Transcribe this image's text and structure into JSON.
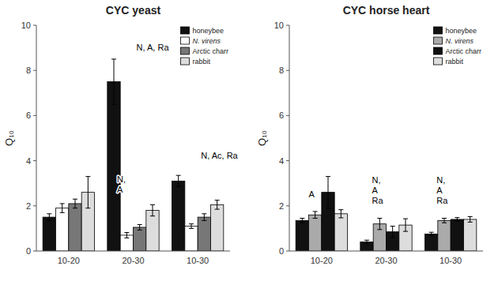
{
  "chart_data": [
    {
      "type": "bar",
      "title": "CYC yeast",
      "ylabel": "Q₁₀",
      "categories": [
        "10-20",
        "20-30",
        "10-30"
      ],
      "series": [
        {
          "name": "honeybee",
          "color": "#111111",
          "values": [
            1.5,
            7.5,
            3.1
          ],
          "errors": [
            0.15,
            1.0,
            0.25
          ]
        },
        {
          "name": "N. virens",
          "color": "#ffffff",
          "values": [
            1.9,
            0.7,
            1.1
          ],
          "errors": [
            0.2,
            0.12,
            0.1
          ]
        },
        {
          "name": "Arctic charr",
          "color": "#777777",
          "values": [
            2.1,
            1.05,
            1.5
          ],
          "errors": [
            0.2,
            0.12,
            0.15
          ]
        },
        {
          "name": "rabbit",
          "color": "#dddddd",
          "values": [
            2.6,
            1.8,
            2.05
          ],
          "errors": [
            0.7,
            0.25,
            0.2
          ]
        }
      ],
      "ylim": [
        0,
        10
      ],
      "yticks": [
        0,
        2,
        4,
        6,
        8,
        10
      ],
      "legend": "upper right",
      "annotations": [
        {
          "text": "N, A, Ra",
          "x": 1.05,
          "y": 8.8
        },
        {
          "text": "N,\nA",
          "x": 0.75,
          "y": 2.5
        },
        {
          "text": "N, Ac, Ra",
          "x": 2.05,
          "y": 4.0
        }
      ]
    },
    {
      "type": "bar",
      "title": "CYC horse heart",
      "ylabel": "Q₁₀",
      "categories": [
        "10-20",
        "20-30",
        "10-30"
      ],
      "series": [
        {
          "name": "honeybee",
          "color": "#111111",
          "values": [
            1.35,
            0.4,
            0.75
          ],
          "errors": [
            0.1,
            0.08,
            0.08
          ]
        },
        {
          "name": "N. virens",
          "color": "#aaaaaa",
          "values": [
            1.6,
            1.2,
            1.35
          ],
          "errors": [
            0.15,
            0.25,
            0.1
          ]
        },
        {
          "name": "Arctic charr",
          "color": "#111111",
          "values": [
            2.6,
            0.85,
            1.4
          ],
          "errors": [
            0.7,
            0.25,
            0.08
          ]
        },
        {
          "name": "rabbit",
          "color": "#dddddd",
          "values": [
            1.65,
            1.15,
            1.4
          ],
          "errors": [
            0.18,
            0.28,
            0.12
          ]
        }
      ],
      "ylim": [
        0,
        10
      ],
      "yticks": [
        0,
        2,
        4,
        6,
        8,
        10
      ],
      "legend": "upper right",
      "annotations": [
        {
          "text": "A",
          "x": -0.2,
          "y": 2.3
        },
        {
          "text": "N,\nA\nRa",
          "x": 0.78,
          "y": 2.0
        },
        {
          "text": "N,\nA\nRa",
          "x": 1.78,
          "y": 2.0
        }
      ]
    }
  ]
}
